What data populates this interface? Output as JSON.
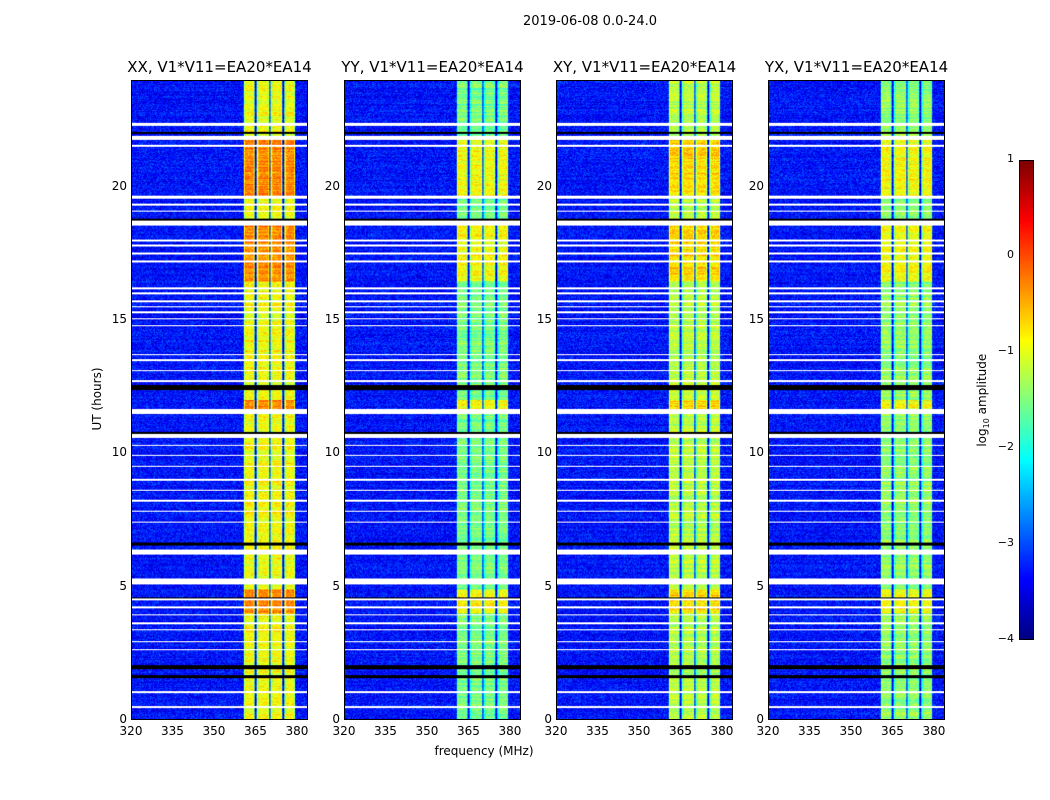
{
  "chart_data": {
    "type": "heatmap",
    "title": "2019-06-08 0.0-24.0",
    "xlabel": "frequency (MHz)",
    "ylabel": "UT (hours)",
    "xlim": [
      320,
      384
    ],
    "ylim": [
      0,
      24
    ],
    "xticks": [
      "320",
      "335",
      "350",
      "365",
      "380"
    ],
    "xtick_values": [
      320,
      335,
      350,
      365,
      380
    ],
    "yticks": [
      "0",
      "5",
      "10",
      "15",
      "20"
    ],
    "ytick_values": [
      0,
      5,
      10,
      15,
      20
    ],
    "panels": [
      {
        "title": "XX, V1*V11=EA20*EA14",
        "band_level": -0.9,
        "peak_level": -0.3
      },
      {
        "title": "YY, V1*V11=EA20*EA14",
        "band_level": -1.5,
        "peak_level": -0.9
      },
      {
        "title": "XY, V1*V11=EA20*EA14",
        "band_level": -1.2,
        "peak_level": -0.7
      },
      {
        "title": "YX, V1*V11=EA20*EA14",
        "band_level": -1.4,
        "peak_level": -0.9
      }
    ],
    "background_level": -3.3,
    "rfi_subbands_mhz": [
      [
        360.5,
        364.8
      ],
      [
        365.5,
        370.2
      ],
      [
        370.6,
        374.9
      ],
      [
        375.6,
        379.6
      ]
    ],
    "flagged_white_hours": [
      [
        22.35,
        22.45
      ],
      [
        21.8,
        21.95
      ],
      [
        21.55,
        21.62
      ],
      [
        19.6,
        19.7
      ],
      [
        19.35,
        19.4
      ],
      [
        19.1,
        19.15
      ],
      [
        18.6,
        18.75
      ],
      [
        18.0,
        18.05
      ],
      [
        17.8,
        17.85
      ],
      [
        17.5,
        17.55
      ],
      [
        17.2,
        17.25
      ],
      [
        16.2,
        16.25
      ],
      [
        16.0,
        16.05
      ],
      [
        15.7,
        15.75
      ],
      [
        15.5,
        15.55
      ],
      [
        15.3,
        15.35
      ],
      [
        15.05,
        15.1
      ],
      [
        14.8,
        14.85
      ],
      [
        13.7,
        13.75
      ],
      [
        13.5,
        13.55
      ],
      [
        13.1,
        13.15
      ],
      [
        12.7,
        12.75
      ],
      [
        11.5,
        11.7
      ],
      [
        10.6,
        10.75
      ],
      [
        10.3,
        10.35
      ],
      [
        9.9,
        9.95
      ],
      [
        9.5,
        9.55
      ],
      [
        9.0,
        9.05
      ],
      [
        8.6,
        8.65
      ],
      [
        8.2,
        8.25
      ],
      [
        7.8,
        7.85
      ],
      [
        7.4,
        7.45
      ],
      [
        6.2,
        6.4
      ],
      [
        5.1,
        5.3
      ],
      [
        4.5,
        4.55
      ],
      [
        4.2,
        4.25
      ],
      [
        3.9,
        3.95
      ],
      [
        3.6,
        3.65
      ],
      [
        3.35,
        3.4
      ],
      [
        2.9,
        2.95
      ],
      [
        2.6,
        2.65
      ],
      [
        1.0,
        1.05
      ],
      [
        0.45,
        0.5
      ]
    ],
    "flagged_black_hours": [
      [
        18.75,
        18.85
      ],
      [
        12.4,
        12.6
      ],
      [
        10.75,
        10.8
      ],
      [
        6.55,
        6.65
      ],
      [
        1.9,
        2.05
      ],
      [
        1.55,
        1.65
      ],
      [
        22.05,
        22.1
      ],
      [
        4.55,
        4.6
      ]
    ],
    "strong_hours": [
      [
        16.5,
        18.6
      ],
      [
        19.7,
        21.8
      ],
      [
        11.5,
        12.0
      ],
      [
        4.0,
        4.9
      ]
    ],
    "colorbar": {
      "label": "log10 amplitude",
      "label_main": "log",
      "label_sub": "10",
      "label_rest": " amplitude",
      "range": [
        -4,
        1
      ],
      "ticks": [
        "1",
        "0",
        "−1",
        "−2",
        "−3",
        "−4"
      ],
      "tick_values": [
        1,
        0,
        -1,
        -2,
        -3,
        -4
      ],
      "colormap": "jet"
    }
  }
}
